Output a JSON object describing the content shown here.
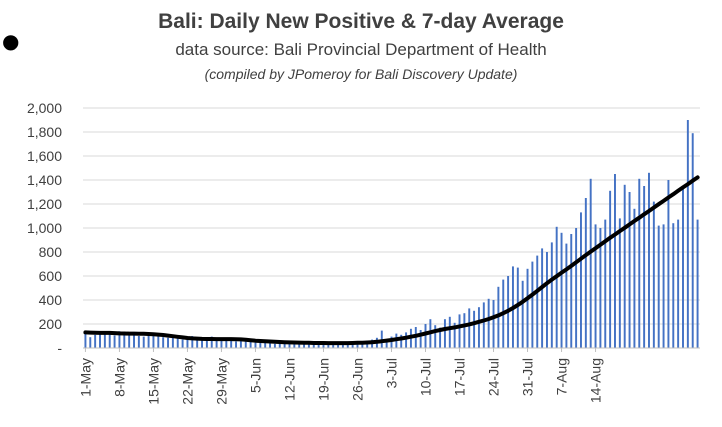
{
  "chart_data": {
    "type": "bar",
    "title": "Bali:  Daily New Positive & 7-day Average",
    "subtitle": "data source:  Bali Provincial Department of Health",
    "note": "(compiled by JPomeroy for Bali Discovery Update)",
    "start_date": "2021-05-01",
    "ylim": [
      0,
      2000
    ],
    "yticks": [
      {
        "value": 0,
        "label": "-"
      },
      {
        "value": 200,
        "label": "200"
      },
      {
        "value": 400,
        "label": "400"
      },
      {
        "value": 600,
        "label": "600"
      },
      {
        "value": 800,
        "label": "800"
      },
      {
        "value": 1000,
        "label": "1,000"
      },
      {
        "value": 1200,
        "label": "1,200"
      },
      {
        "value": 1400,
        "label": "1,400"
      },
      {
        "value": 1600,
        "label": "1,600"
      },
      {
        "value": 1800,
        "label": "1,800"
      },
      {
        "value": 2000,
        "label": "2,000"
      }
    ],
    "xticks": [
      "1-May",
      "8-May",
      "15-May",
      "22-May",
      "29-May",
      "5-Jun",
      "12-Jun",
      "19-Jun",
      "26-Jun",
      "3-Jul",
      "10-Jul",
      "17-Jul",
      "24-Jul",
      "31-Jul",
      "7-Aug",
      "14-Aug"
    ],
    "grid": true,
    "colors": {
      "bars": "#4472c4",
      "average": "#000000",
      "grid": "#d9d9d9",
      "axis": "#bfbfbf"
    },
    "series": [
      {
        "name": "Daily New Positive",
        "kind": "bar",
        "values": [
          140,
          90,
          110,
          130,
          120,
          125,
          105,
          140,
          120,
          110,
          130,
          100,
          95,
          115,
          120,
          105,
          90,
          85,
          95,
          80,
          70,
          90,
          100,
          85,
          75,
          80,
          95,
          70,
          75,
          80,
          65,
          55,
          60,
          70,
          50,
          45,
          60,
          55,
          40,
          35,
          45,
          50,
          40,
          30,
          40,
          35,
          45,
          30,
          40,
          45,
          35,
          40,
          45,
          35,
          40,
          55,
          50,
          45,
          60,
          70,
          85,
          145,
          75,
          95,
          120,
          110,
          130,
          160,
          175,
          150,
          200,
          240,
          190,
          170,
          240,
          260,
          210,
          280,
          290,
          330,
          310,
          340,
          380,
          410,
          400,
          510,
          570,
          600,
          680,
          670,
          560,
          660,
          720,
          770,
          830,
          800,
          880,
          1010,
          960,
          870,
          950,
          1000,
          1130,
          1250,
          1410,
          1030,
          1000,
          1070,
          1310,
          1450,
          1080,
          1360,
          1300,
          1160,
          1410,
          1350,
          1460,
          1220,
          1020,
          1030,
          1400,
          1040,
          1070,
          1350,
          1900,
          1790,
          1070
        ]
      },
      {
        "name": "7-day Average",
        "kind": "line",
        "values": [
          130,
          128,
          127,
          126,
          126,
          126,
          124,
          122,
          121,
          120,
          120,
          119,
          118,
          117,
          114,
          112,
          108,
          103,
          98,
          93,
          88,
          83,
          80,
          78,
          76,
          75,
          75,
          74,
          74,
          74,
          74,
          73,
          72,
          69,
          65,
          61,
          58,
          56,
          54,
          52,
          50,
          48,
          47,
          46,
          45,
          44,
          43,
          42,
          42,
          42,
          41,
          41,
          41,
          41,
          41,
          42,
          43,
          44,
          46,
          48,
          52,
          57,
          62,
          67,
          73,
          79,
          86,
          94,
          102,
          111,
          121,
          131,
          141,
          150,
          158,
          165,
          172,
          180,
          188,
          197,
          207,
          218,
          229,
          242,
          256,
          272,
          290,
          310,
          333,
          358,
          385,
          414,
          445,
          476,
          508,
          540,
          570,
          598,
          627,
          655,
          684,
          714,
          744,
          774,
          803,
          832,
          861,
          890,
          918,
          946,
          974,
          1002,
          1030,
          1058,
          1086,
          1114,
          1142,
          1170,
          1198,
          1226,
          1254,
          1282,
          1310,
          1338,
          1366,
          1394,
          1422
        ]
      }
    ]
  }
}
